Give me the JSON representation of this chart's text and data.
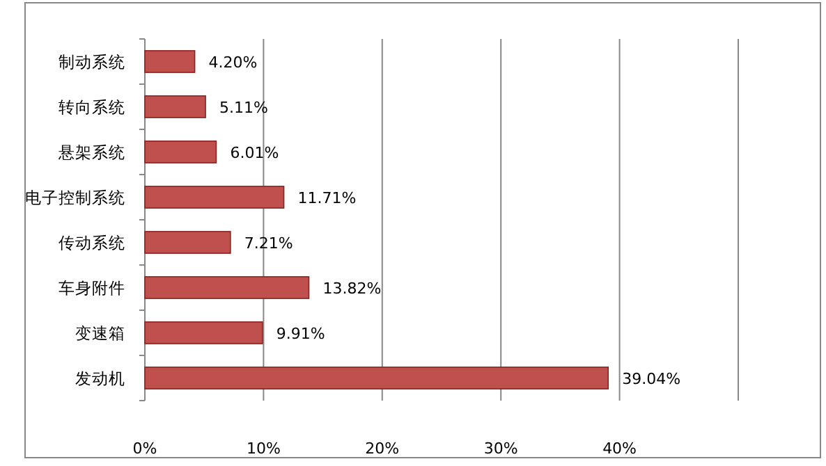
{
  "chart_data": {
    "type": "bar",
    "orientation": "horizontal",
    "categories": [
      "制动系统",
      "转向系统",
      "悬架系统",
      "电子控制系统",
      "传动系统",
      "车身附件",
      "变速箱",
      "发动机"
    ],
    "values": [
      4.2,
      5.11,
      6.01,
      11.71,
      7.21,
      13.82,
      9.91,
      39.04
    ],
    "value_labels": [
      "4.20%",
      "5.11%",
      "6.01%",
      "11.71%",
      "7.21%",
      "13.82%",
      "9.91%",
      "39.04%"
    ],
    "color": "#c0504d",
    "xlim": [
      0,
      50
    ],
    "xticks": [
      {
        "value": 0,
        "label": "0%"
      },
      {
        "value": 10,
        "label": "10%"
      },
      {
        "value": 20,
        "label": "20%"
      },
      {
        "value": 30,
        "label": "30%"
      },
      {
        "value": 40,
        "label": "40%"
      },
      {
        "value": 50,
        "label": null
      }
    ],
    "grid": "x"
  }
}
